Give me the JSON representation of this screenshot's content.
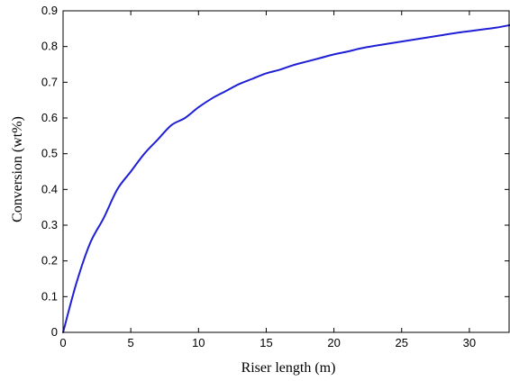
{
  "chart_data": {
    "type": "line",
    "title": "",
    "xlabel": "Riser length (m)",
    "ylabel": "Conversion (wt%)",
    "xlim": [
      0,
      33
    ],
    "ylim": [
      0,
      0.9
    ],
    "x_ticks": [
      0,
      5,
      10,
      15,
      20,
      25,
      30
    ],
    "x_tick_labels": [
      "0",
      "5",
      "10",
      "15",
      "20",
      "25",
      "30"
    ],
    "y_ticks": [
      0,
      0.1,
      0.2,
      0.3,
      0.4,
      0.5,
      0.6,
      0.7,
      0.8,
      0.9
    ],
    "y_tick_labels": [
      "0",
      "0.1",
      "0.2",
      "0.3",
      "0.4",
      "0.5",
      "0.6",
      "0.7",
      "0.8",
      "0.9"
    ],
    "grid": false,
    "legend": "none",
    "series": [
      {
        "color": "#1f1fd6",
        "x": [
          0,
          1,
          2,
          3,
          4,
          5,
          6,
          7,
          8,
          9,
          10,
          11,
          12,
          13,
          14,
          15,
          16,
          17,
          18,
          19,
          20,
          21,
          22,
          23,
          24,
          25,
          26,
          27,
          28,
          29,
          30,
          31,
          32,
          33
        ],
        "y": [
          0.0,
          0.14,
          0.25,
          0.32,
          0.4,
          0.45,
          0.5,
          0.54,
          0.58,
          0.6,
          0.63,
          0.655,
          0.675,
          0.695,
          0.71,
          0.725,
          0.735,
          0.748,
          0.758,
          0.768,
          0.778,
          0.786,
          0.795,
          0.802,
          0.808,
          0.814,
          0.82,
          0.826,
          0.832,
          0.838,
          0.843,
          0.848,
          0.853,
          0.86
        ]
      }
    ]
  }
}
